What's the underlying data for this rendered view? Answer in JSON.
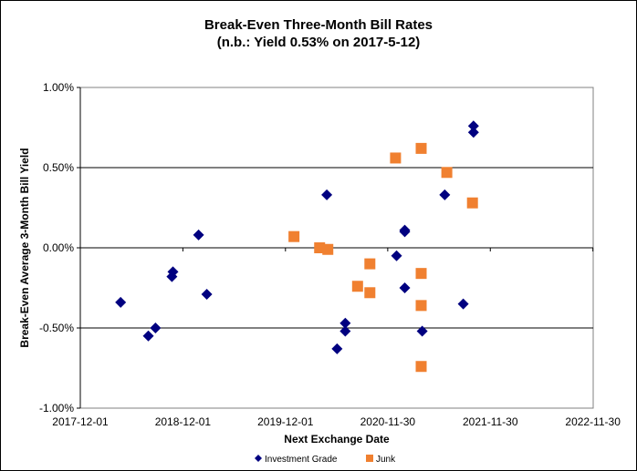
{
  "chart_data": {
    "type": "scatter",
    "title": "Break-Even Three-Month Bill Rates",
    "subtitle": "(n.b.: Yield 0.53% on 2017-5-12)",
    "xlabel": "Next Exchange Date",
    "ylabel": "Break-Even Average 3-Month Bill Yield",
    "x_units": "decimal year",
    "xlim": [
      2017.917,
      2022.917
    ],
    "ylim": [
      -1.0,
      1.0
    ],
    "x_tick_values": [
      2017.917,
      2018.917,
      2019.917,
      2020.914,
      2021.914,
      2022.914
    ],
    "x_tick_labels": [
      "2017-12-01",
      "2018-12-01",
      "2019-12-01",
      "2020-11-30",
      "2021-11-30",
      "2022-11-30"
    ],
    "y_tick_values": [
      1.0,
      0.5,
      0.0,
      -0.5,
      -1.0
    ],
    "y_tick_labels": [
      "1.00%",
      "0.50%",
      "0.00%",
      "-0.50%",
      "-1.00%"
    ],
    "grid": "horizontal major",
    "legend_position": "bottom",
    "series": [
      {
        "name": "Investment Grade",
        "marker": "diamond",
        "color": "#000080",
        "points": [
          [
            2018.31,
            -0.34
          ],
          [
            2018.58,
            -0.55
          ],
          [
            2018.65,
            -0.5
          ],
          [
            2018.82,
            -0.15
          ],
          [
            2018.81,
            -0.18
          ],
          [
            2019.07,
            0.08
          ],
          [
            2019.15,
            -0.29
          ],
          [
            2020.32,
            0.33
          ],
          [
            2020.5,
            -0.47
          ],
          [
            2020.5,
            -0.52
          ],
          [
            2020.42,
            -0.63
          ],
          [
            2021.08,
            0.11
          ],
          [
            2021.08,
            0.1
          ],
          [
            2021.0,
            -0.05
          ],
          [
            2021.08,
            -0.25
          ],
          [
            2021.25,
            -0.52
          ],
          [
            2021.47,
            0.33
          ],
          [
            2021.65,
            -0.35
          ],
          [
            2021.75,
            0.76
          ],
          [
            2021.75,
            0.72
          ]
        ]
      },
      {
        "name": "Junk",
        "marker": "square",
        "color": "#F08030",
        "points": [
          [
            2020.0,
            0.07
          ],
          [
            2020.25,
            0.0
          ],
          [
            2020.33,
            -0.01
          ],
          [
            2020.74,
            -0.1
          ],
          [
            2020.62,
            -0.24
          ],
          [
            2020.74,
            -0.28
          ],
          [
            2020.99,
            0.56
          ],
          [
            2021.24,
            0.62
          ],
          [
            2021.49,
            0.47
          ],
          [
            2021.74,
            0.28
          ],
          [
            2021.24,
            -0.16
          ],
          [
            2021.24,
            -0.36
          ],
          [
            2021.24,
            -0.74
          ]
        ]
      }
    ]
  }
}
